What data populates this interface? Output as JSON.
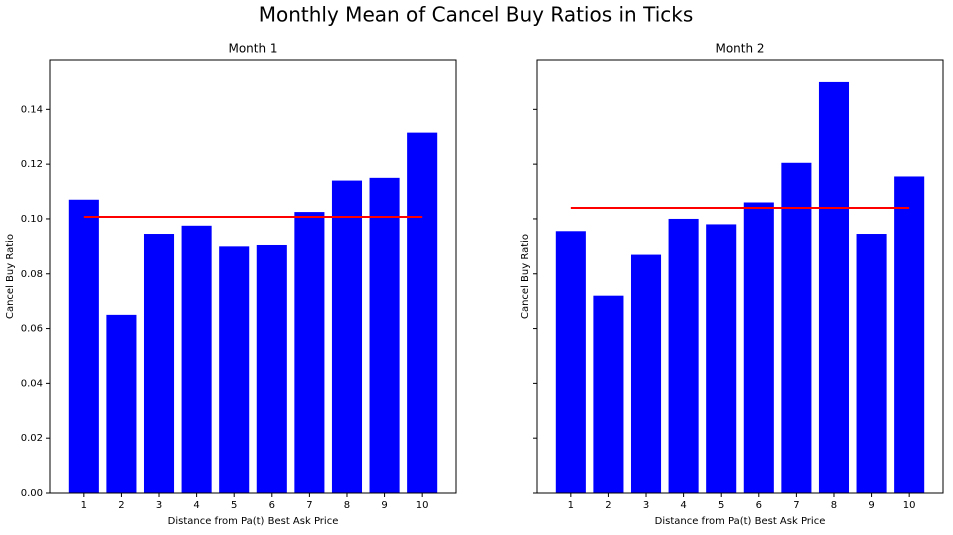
{
  "title": "Monthly Mean of Cancel Buy Ratios in Ticks",
  "chart_data": [
    {
      "type": "bar",
      "title": "Month 1",
      "xlabel": "Distance from Pa(t) Best Ask Price",
      "ylabel": "Cancel Buy Ratio",
      "x": [
        1,
        2,
        3,
        4,
        5,
        6,
        7,
        8,
        9,
        10
      ],
      "values": [
        0.107,
        0.065,
        0.0945,
        0.0975,
        0.09,
        0.0905,
        0.1025,
        0.114,
        0.115,
        0.1315
      ],
      "color": "#0000ff",
      "mean_line": {
        "value": 0.1007,
        "x": [
          1,
          10
        ],
        "color": "#ff0000"
      },
      "xlim": [
        0.1,
        10.9
      ],
      "xticks": [
        1,
        2,
        3,
        4,
        5,
        6,
        7,
        8,
        9,
        10
      ],
      "ylim": [
        0,
        0.158
      ],
      "yticks": [
        {
          "value": 0,
          "label": "0.00"
        },
        {
          "value": 0.02,
          "label": "0.02"
        },
        {
          "value": 0.04,
          "label": "0.04"
        },
        {
          "value": 0.06,
          "label": "0.06"
        },
        {
          "value": 0.08,
          "label": "0.08"
        },
        {
          "value": 0.1,
          "label": "0.10"
        },
        {
          "value": 0.12,
          "label": "0.12"
        },
        {
          "value": 0.14,
          "label": "0.14"
        }
      ],
      "show_ytick_labels": true
    },
    {
      "type": "bar",
      "title": "Month 2",
      "xlabel": "Distance from Pa(t) Best Ask Price",
      "ylabel": "Cancel Buy Ratio",
      "x": [
        1,
        2,
        3,
        4,
        5,
        6,
        7,
        8,
        9,
        10
      ],
      "values": [
        0.0955,
        0.072,
        0.087,
        0.1,
        0.098,
        0.106,
        0.1205,
        0.15,
        0.0945,
        0.1155
      ],
      "color": "#0000ff",
      "mean_line": {
        "value": 0.104,
        "x": [
          1,
          10
        ],
        "color": "#ff0000"
      },
      "xlim": [
        0.1,
        10.9
      ],
      "xticks": [
        1,
        2,
        3,
        4,
        5,
        6,
        7,
        8,
        9,
        10
      ],
      "ylim": [
        0,
        0.158
      ],
      "yticks": [
        0,
        0.02,
        0.04,
        0.06,
        0.08,
        0.1,
        0.12,
        0.14
      ],
      "show_ytick_labels": false
    }
  ]
}
